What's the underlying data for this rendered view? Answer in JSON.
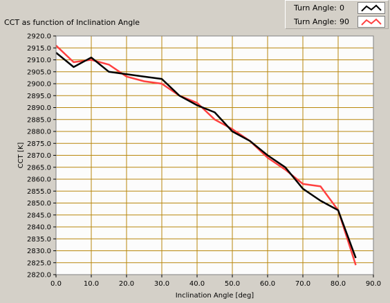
{
  "chart_data": {
    "type": "line",
    "title": "CCT as function of Inclination Angle",
    "xlabel": "Inclination Angle [deg]",
    "ylabel": "CCT [K]",
    "xlim": [
      0,
      90
    ],
    "ylim": [
      2820,
      2920
    ],
    "xticks": [
      0,
      10,
      20,
      30,
      40,
      50,
      60,
      70,
      80,
      90
    ],
    "yticks": [
      2820,
      2825,
      2830,
      2835,
      2840,
      2845,
      2850,
      2855,
      2860,
      2865,
      2870,
      2875,
      2880,
      2885,
      2890,
      2895,
      2900,
      2905,
      2910,
      2915,
      2920
    ],
    "xtick_labels": [
      "0.0",
      "10.0",
      "20.0",
      "30.0",
      "40.0",
      "50.0",
      "60.0",
      "70.0",
      "80.0",
      "90.0"
    ],
    "ytick_labels": [
      "2820.0",
      "2825.0",
      "2830.0",
      "2835.0",
      "2840.0",
      "2845.0",
      "2850.0",
      "2855.0",
      "2860.0",
      "2865.0",
      "2870.0",
      "2875.0",
      "2880.0",
      "2885.0",
      "2890.0",
      "2895.0",
      "2900.0",
      "2905.0",
      "2910.0",
      "2915.0",
      "2920.0"
    ],
    "grid": true,
    "grid_color": "#b8860b",
    "plot_background": "#fcfcfc",
    "legend_position": "top-right",
    "series": [
      {
        "name": "Turn Angle:",
        "turn_angle": "0",
        "color": "#000000",
        "x": [
          0,
          5,
          10,
          15,
          20,
          25,
          30,
          35,
          40,
          45,
          50,
          55,
          60,
          65,
          70,
          75,
          80,
          85
        ],
        "y": [
          2913,
          2907,
          2911,
          2905,
          2904,
          2903,
          2902,
          2895,
          2891,
          2888,
          2880,
          2876,
          2870,
          2865,
          2856,
          2851,
          2847,
          2827
        ]
      },
      {
        "name": "Turn Angle:",
        "turn_angle": "90",
        "color": "#ff4040",
        "x": [
          0,
          5,
          10,
          15,
          20,
          25,
          30,
          35,
          40,
          45,
          50,
          55,
          60,
          65,
          70,
          75,
          80,
          85
        ],
        "y": [
          2916,
          2909,
          2910,
          2908,
          2903,
          2901,
          2900,
          2895,
          2892,
          2885,
          2881,
          2876,
          2869,
          2864,
          2858,
          2857,
          2847,
          2824
        ]
      }
    ]
  }
}
